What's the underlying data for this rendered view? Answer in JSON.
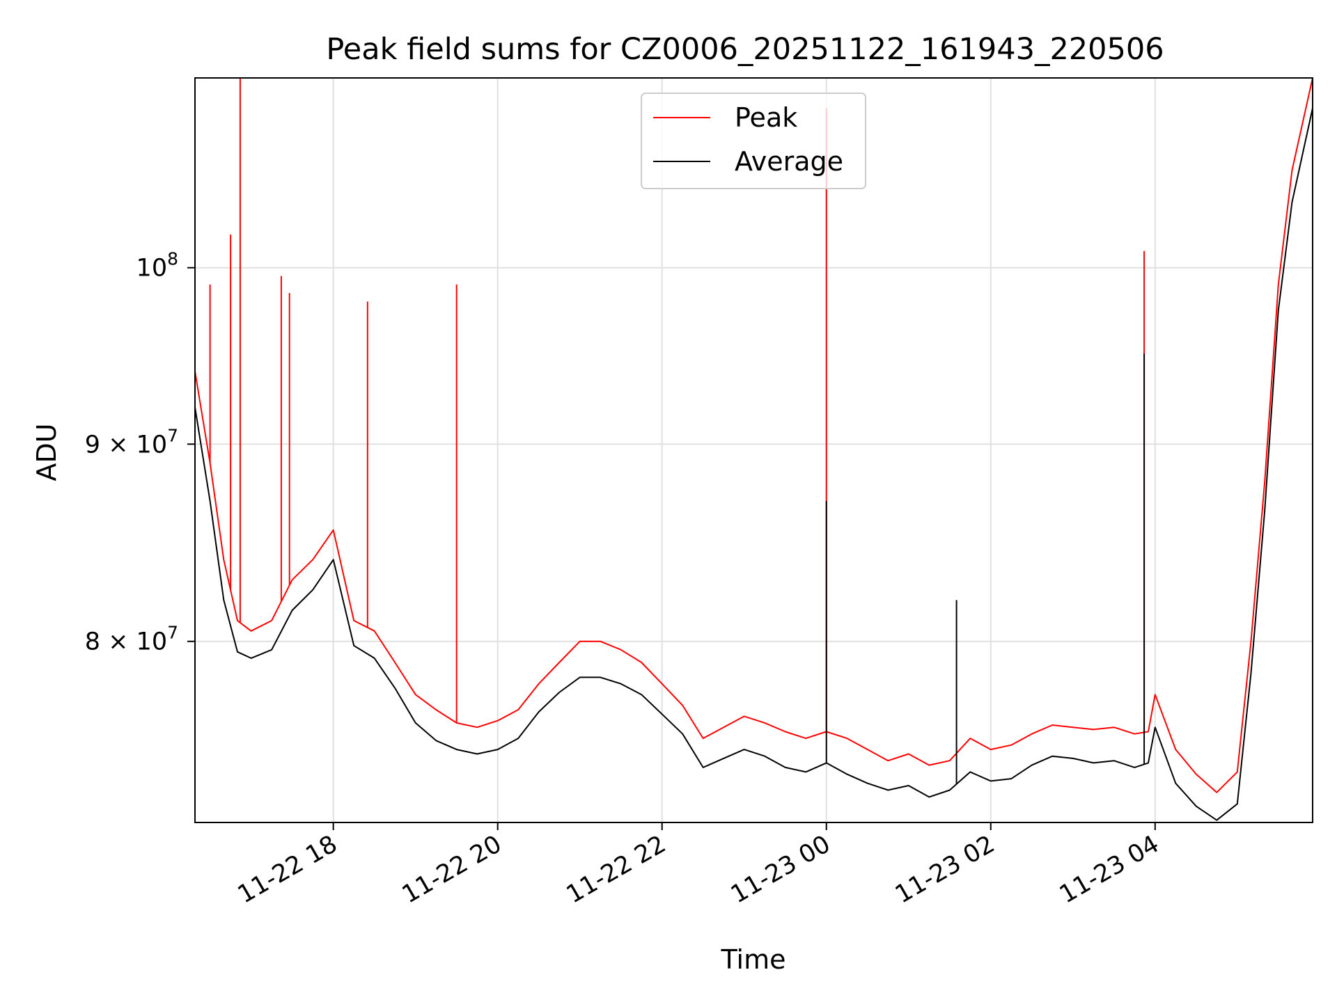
{
  "chart_data": {
    "type": "line",
    "title": "Peak field sums for CZ0006_20251122_161943_220506",
    "xlabel": "Time",
    "ylabel": "ADU",
    "yscale": "log",
    "xlim": [
      "2025-11-22 16:19",
      "2025-11-23 05:55"
    ],
    "ylim": [
      71800000,
      112000000
    ],
    "grid": true,
    "legend": "upper center",
    "x_ticks": [
      {
        "value": "2025-11-22 18:00",
        "label": "11-22 18"
      },
      {
        "value": "2025-11-22 20:00",
        "label": "11-22 20"
      },
      {
        "value": "2025-11-22 22:00",
        "label": "11-22 22"
      },
      {
        "value": "2025-11-23 00:00",
        "label": "11-23 00"
      },
      {
        "value": "2025-11-23 02:00",
        "label": "11-23 02"
      },
      {
        "value": "2025-11-23 04:00",
        "label": "11-23 04"
      }
    ],
    "y_ticks": [
      {
        "value": 100000000,
        "base": "10",
        "exp": "8",
        "mant": ""
      },
      {
        "value": 90000000,
        "base": "10",
        "exp": "7",
        "mant": "9 × "
      },
      {
        "value": 80000000,
        "base": "10",
        "exp": "7",
        "mant": "8 × "
      }
    ],
    "series": [
      {
        "name": "Peak",
        "color": "#ff0000",
        "x": [
          "2025-11-22 16:19",
          "2025-11-22 16:30",
          "2025-11-22 16:40",
          "2025-11-22 16:50",
          "2025-11-22 17:00",
          "2025-11-22 17:15",
          "2025-11-22 17:30",
          "2025-11-22 17:45",
          "2025-11-22 18:00",
          "2025-11-22 18:15",
          "2025-11-22 18:30",
          "2025-11-22 18:45",
          "2025-11-22 19:00",
          "2025-11-22 19:15",
          "2025-11-22 19:30",
          "2025-11-22 19:45",
          "2025-11-22 20:00",
          "2025-11-22 20:15",
          "2025-11-22 20:30",
          "2025-11-22 20:45",
          "2025-11-22 21:00",
          "2025-11-22 21:15",
          "2025-11-22 21:30",
          "2025-11-22 21:45",
          "2025-11-22 22:00",
          "2025-11-22 22:15",
          "2025-11-22 22:30",
          "2025-11-22 22:45",
          "2025-11-22 23:00",
          "2025-11-22 23:15",
          "2025-11-22 23:30",
          "2025-11-22 23:45",
          "2025-11-23 00:00",
          "2025-11-23 00:15",
          "2025-11-23 00:30",
          "2025-11-23 00:45",
          "2025-11-23 01:00",
          "2025-11-23 01:15",
          "2025-11-23 01:30",
          "2025-11-23 01:45",
          "2025-11-23 02:00",
          "2025-11-23 02:15",
          "2025-11-23 02:30",
          "2025-11-23 02:45",
          "2025-11-23 03:00",
          "2025-11-23 03:15",
          "2025-11-23 03:30",
          "2025-11-23 03:45",
          "2025-11-23 03:55",
          "2025-11-23 04:00",
          "2025-11-23 04:15",
          "2025-11-23 04:30",
          "2025-11-23 04:45",
          "2025-11-23 05:00",
          "2025-11-23 05:10",
          "2025-11-23 05:20",
          "2025-11-23 05:30",
          "2025-11-23 05:40",
          "2025-11-23 05:55"
        ],
        "y": [
          94000000,
          89000000,
          84000000,
          81000000,
          80500000,
          81000000,
          83000000,
          84000000,
          85500000,
          81000000,
          80500000,
          79000000,
          77500000,
          76800000,
          76200000,
          76000000,
          76300000,
          76800000,
          78000000,
          79000000,
          80000000,
          80000000,
          79600000,
          79000000,
          78000000,
          77000000,
          75500000,
          76000000,
          76500000,
          76200000,
          75800000,
          75500000,
          75800000,
          75500000,
          75000000,
          74500000,
          74800000,
          74300000,
          74500000,
          75500000,
          75000000,
          75200000,
          75700000,
          76100000,
          76000000,
          75900000,
          76000000,
          75700000,
          75800000,
          77500000,
          75000000,
          73900000,
          73100000,
          74000000,
          80000000,
          88000000,
          99000000,
          106000000,
          112000000
        ],
        "spikes": [
          {
            "x": "2025-11-22 16:30",
            "y": 99000000
          },
          {
            "x": "2025-11-22 16:45",
            "y": 102000000
          },
          {
            "x": "2025-11-22 16:52",
            "y": 120000000
          },
          {
            "x": "2025-11-22 17:22",
            "y": 99500000
          },
          {
            "x": "2025-11-22 17:28",
            "y": 98500000
          },
          {
            "x": "2025-11-22 18:25",
            "y": 98000000
          },
          {
            "x": "2025-11-22 19:30",
            "y": 99000000
          },
          {
            "x": "2025-11-23 00:00",
            "y": 110000000
          },
          {
            "x": "2025-11-23 03:52",
            "y": 101000000
          }
        ]
      },
      {
        "name": "Average",
        "color": "#000000",
        "x": [
          "2025-11-22 16:19",
          "2025-11-22 16:30",
          "2025-11-22 16:40",
          "2025-11-22 16:50",
          "2025-11-22 17:00",
          "2025-11-22 17:15",
          "2025-11-22 17:30",
          "2025-11-22 17:45",
          "2025-11-22 18:00",
          "2025-11-22 18:15",
          "2025-11-22 18:30",
          "2025-11-22 18:45",
          "2025-11-22 19:00",
          "2025-11-22 19:15",
          "2025-11-22 19:30",
          "2025-11-22 19:45",
          "2025-11-22 20:00",
          "2025-11-22 20:15",
          "2025-11-22 20:30",
          "2025-11-22 20:45",
          "2025-11-22 21:00",
          "2025-11-22 21:15",
          "2025-11-22 21:30",
          "2025-11-22 21:45",
          "2025-11-22 22:00",
          "2025-11-22 22:15",
          "2025-11-22 22:30",
          "2025-11-22 22:45",
          "2025-11-22 23:00",
          "2025-11-22 23:15",
          "2025-11-22 23:30",
          "2025-11-22 23:45",
          "2025-11-23 00:00",
          "2025-11-23 00:15",
          "2025-11-23 00:30",
          "2025-11-23 00:45",
          "2025-11-23 01:00",
          "2025-11-23 01:15",
          "2025-11-23 01:30",
          "2025-11-23 01:45",
          "2025-11-23 02:00",
          "2025-11-23 02:15",
          "2025-11-23 02:30",
          "2025-11-23 02:45",
          "2025-11-23 03:00",
          "2025-11-23 03:15",
          "2025-11-23 03:30",
          "2025-11-23 03:45",
          "2025-11-23 03:55",
          "2025-11-23 04:00",
          "2025-11-23 04:15",
          "2025-11-23 04:30",
          "2025-11-23 04:45",
          "2025-11-23 05:00",
          "2025-11-23 05:10",
          "2025-11-23 05:20",
          "2025-11-23 05:30",
          "2025-11-23 05:40",
          "2025-11-23 05:55"
        ],
        "y": [
          92000000,
          87000000,
          82000000,
          79500000,
          79200000,
          79600000,
          81500000,
          82500000,
          84000000,
          79800000,
          79200000,
          77800000,
          76200000,
          75400000,
          75000000,
          74800000,
          75000000,
          75500000,
          76700000,
          77600000,
          78300000,
          78300000,
          78000000,
          77500000,
          76600000,
          75700000,
          74200000,
          74600000,
          75000000,
          74700000,
          74200000,
          74000000,
          74400000,
          73900000,
          73500000,
          73200000,
          73400000,
          72900000,
          73200000,
          74000000,
          73600000,
          73700000,
          74300000,
          74700000,
          74600000,
          74400000,
          74500000,
          74200000,
          74400000,
          76000000,
          73500000,
          72500000,
          71900000,
          72600000,
          78500000,
          86500000,
          97500000,
          104000000,
          110000000
        ],
        "spikes": [
          {
            "x": "2025-11-23 00:00",
            "y": 87000000
          },
          {
            "x": "2025-11-23 01:35",
            "y": 82000000
          },
          {
            "x": "2025-11-23 03:52",
            "y": 95000000
          }
        ]
      }
    ]
  }
}
